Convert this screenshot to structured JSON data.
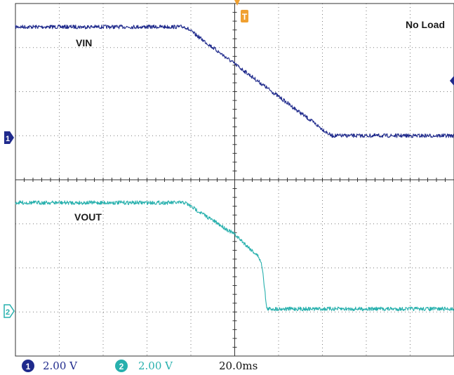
{
  "chart_data": {
    "type": "line",
    "title": "",
    "annotations": {
      "condition": "No Load",
      "trigger_marker": "T"
    },
    "grid": {
      "on": true,
      "horizontal_divisions": 10,
      "vertical_divisions": 8
    },
    "x": {
      "unit": "ms",
      "time_per_div": "20.0ms",
      "range_div": [
        -5,
        5
      ]
    },
    "series": [
      {
        "name": "VIN",
        "channel": "1",
        "color": "#1f2a8c",
        "volts_per_div": "2.00 V",
        "ground_div": 0.95,
        "points_div": [
          [
            -5,
            2.52
          ],
          [
            -1.13,
            2.52
          ],
          [
            0,
            1.68
          ],
          [
            2.2,
            0.05
          ],
          [
            5,
            0.05
          ]
        ]
      },
      {
        "name": "VOUT",
        "channel": "2",
        "color": "#27b0ad",
        "volts_per_div": "2.00 V",
        "ground_div": -2.95,
        "points_div": [
          [
            -5,
            2.43
          ],
          [
            -1.13,
            2.43
          ],
          [
            0,
            1.71
          ],
          [
            0.55,
            1.2
          ],
          [
            0.63,
            0.97
          ],
          [
            0.73,
            0.02
          ],
          [
            5,
            0.02
          ]
        ]
      }
    ]
  },
  "footer": {
    "ch1_num": "1",
    "ch1_scale": "2.00 V",
    "ch2_num": "2",
    "ch2_scale": "2.00 V",
    "timebase": "20.0ms"
  },
  "markers": {
    "ch1_ground": "1",
    "ch2_ground": "2"
  }
}
